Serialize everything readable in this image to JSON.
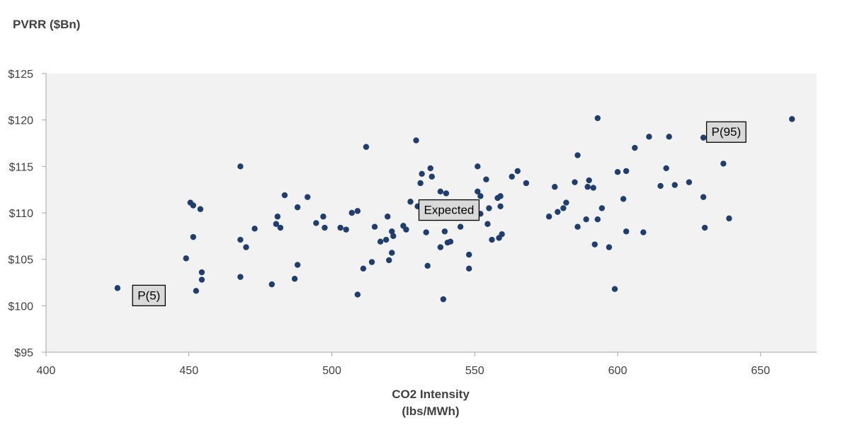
{
  "chart_data": {
    "type": "scatter",
    "ylabel": "PVRR ($Bn)",
    "xlabel_line1": "CO2 Intensity",
    "xlabel_line2": "(lbs/MWh)",
    "xlim": [
      400,
      670
    ],
    "ylim": [
      95,
      125
    ],
    "x_ticks": [
      {
        "value": 400,
        "label": "400"
      },
      {
        "value": 450,
        "label": "450"
      },
      {
        "value": 500,
        "label": "500"
      },
      {
        "value": 550,
        "label": "550"
      },
      {
        "value": 600,
        "label": "600"
      },
      {
        "value": 650,
        "label": "650"
      }
    ],
    "y_ticks": [
      {
        "value": 95,
        "label": "$95"
      },
      {
        "value": 100,
        "label": "$100"
      },
      {
        "value": 105,
        "label": "$105"
      },
      {
        "value": 110,
        "label": "$110"
      },
      {
        "value": 115,
        "label": "$115"
      },
      {
        "value": 120,
        "label": "$120"
      },
      {
        "value": 125,
        "label": "$125"
      }
    ],
    "grid": false,
    "point_color": "#1f3e6e",
    "plot_background": "#f2f2f2",
    "annotations": [
      {
        "text": "P(5)",
        "x": 436,
        "y": 101.1
      },
      {
        "text": "Expected",
        "x": 541,
        "y": 110.3
      },
      {
        "text": "P(95)",
        "x": 638,
        "y": 118.7
      }
    ],
    "points": [
      [
        425,
        101.9
      ],
      [
        449,
        105.1
      ],
      [
        450.5,
        111.1
      ],
      [
        451.5,
        110.8
      ],
      [
        451.5,
        107.4
      ],
      [
        452.5,
        101.6
      ],
      [
        454,
        110.4
      ],
      [
        454.5,
        103.6
      ],
      [
        454.5,
        102.8
      ],
      [
        468,
        103.1
      ],
      [
        468,
        115
      ],
      [
        468,
        107.1
      ],
      [
        470,
        106.3
      ],
      [
        473,
        108.3
      ],
      [
        479,
        102.3
      ],
      [
        480.5,
        108.8
      ],
      [
        481,
        109.6
      ],
      [
        482,
        108.4
      ],
      [
        483.5,
        111.9
      ],
      [
        487,
        102.9
      ],
      [
        488,
        104.4
      ],
      [
        488,
        110.6
      ],
      [
        491.5,
        111.7
      ],
      [
        494.5,
        108.9
      ],
      [
        497,
        109.6
      ],
      [
        497.5,
        108.4
      ],
      [
        503,
        108.4
      ],
      [
        505,
        108.2
      ],
      [
        507,
        110
      ],
      [
        509,
        101.2
      ],
      [
        509,
        110.2
      ],
      [
        511,
        104
      ],
      [
        512,
        117.1
      ],
      [
        514,
        104.7
      ],
      [
        515,
        108.5
      ],
      [
        517,
        106.9
      ],
      [
        519,
        107.1
      ],
      [
        519.5,
        109.6
      ],
      [
        520,
        104.9
      ],
      [
        521,
        105.7
      ],
      [
        521,
        108
      ],
      [
        521.5,
        107.5
      ],
      [
        525,
        108.6
      ],
      [
        526,
        108.2
      ],
      [
        527.5,
        111.2
      ],
      [
        529.5,
        117.8
      ],
      [
        530,
        110.7
      ],
      [
        531,
        113.2
      ],
      [
        531.5,
        114.2
      ],
      [
        533,
        107.9
      ],
      [
        533.5,
        104.3
      ],
      [
        534.5,
        114.8
      ],
      [
        535,
        113.9
      ],
      [
        538,
        112.3
      ],
      [
        538,
        106.3
      ],
      [
        539,
        100.7
      ],
      [
        539.5,
        108
      ],
      [
        540,
        112.1
      ],
      [
        540.5,
        106.8
      ],
      [
        541.5,
        106.9
      ],
      [
        545,
        108.5
      ],
      [
        548,
        104
      ],
      [
        548,
        105.5
      ],
      [
        550,
        111.1
      ],
      [
        551,
        115
      ],
      [
        551,
        112.3
      ],
      [
        552,
        111.8
      ],
      [
        552,
        109.9
      ],
      [
        554,
        113.6
      ],
      [
        554.5,
        108.8
      ],
      [
        555,
        110.5
      ],
      [
        556,
        107.1
      ],
      [
        558,
        111.6
      ],
      [
        558.5,
        107.3
      ],
      [
        559,
        111.8
      ],
      [
        559,
        110.7
      ],
      [
        559.5,
        107.7
      ],
      [
        563,
        113.9
      ],
      [
        565,
        114.5
      ],
      [
        568,
        113.2
      ],
      [
        576,
        109.6
      ],
      [
        578,
        112.8
      ],
      [
        579,
        110.1
      ],
      [
        581,
        110.5
      ],
      [
        582,
        111.1
      ],
      [
        585,
        113.3
      ],
      [
        586,
        108.5
      ],
      [
        586,
        116.2
      ],
      [
        589,
        109.3
      ],
      [
        589.5,
        112.8
      ],
      [
        590,
        113.5
      ],
      [
        591.5,
        112.7
      ],
      [
        592,
        106.6
      ],
      [
        593,
        120.2
      ],
      [
        593,
        109.3
      ],
      [
        594.5,
        110.5
      ],
      [
        597,
        106.3
      ],
      [
        599,
        101.8
      ],
      [
        600,
        114.4
      ],
      [
        602,
        111.5
      ],
      [
        603,
        114.5
      ],
      [
        603,
        108
      ],
      [
        606,
        117
      ],
      [
        609,
        107.9
      ],
      [
        611,
        118.2
      ],
      [
        615,
        112.9
      ],
      [
        617,
        114.8
      ],
      [
        618,
        118.2
      ],
      [
        620,
        113
      ],
      [
        625,
        113.3
      ],
      [
        630,
        118.1
      ],
      [
        630,
        111.7
      ],
      [
        630.5,
        108.4
      ],
      [
        637,
        115.3
      ],
      [
        639,
        109.4
      ],
      [
        661,
        120.1
      ]
    ]
  }
}
